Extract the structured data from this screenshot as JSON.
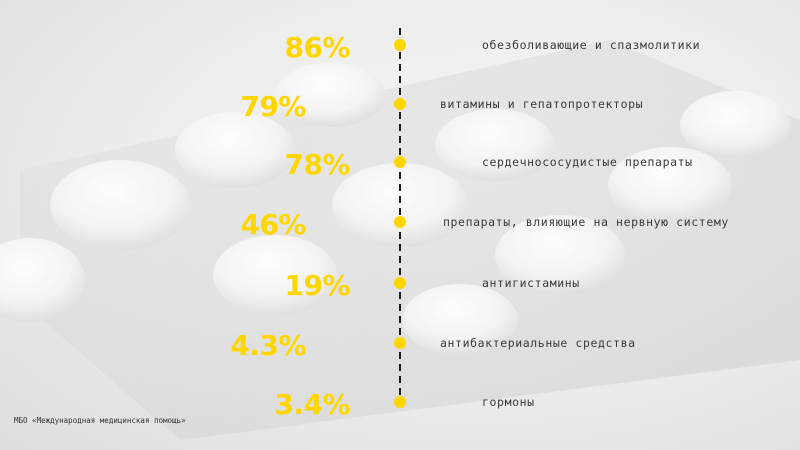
{
  "source_note": "МБО «Международная медицинская помощь»",
  "colors": {
    "accent": "#FFD600",
    "axis": "#1a1a1a",
    "label": "#3a3a3a"
  },
  "chart_data": {
    "type": "bar",
    "title": "",
    "xlabel": "",
    "ylabel": "",
    "categories": [
      "обезболивающие и спазмолитики",
      "витамины и гепатопротекторы",
      "сердечнососудистые препараты",
      "препараты, влияющие на нервную систему",
      "антигистамины",
      "антибактериальные средства",
      "гормоны"
    ],
    "value_labels": [
      "86%",
      "79%",
      "78%",
      "46%",
      "19%",
      "4.3%",
      "3.4%"
    ],
    "values": [
      86,
      79,
      78,
      46,
      19,
      4.3,
      3.4
    ],
    "unit": "%",
    "grid": false,
    "legend": "none"
  }
}
